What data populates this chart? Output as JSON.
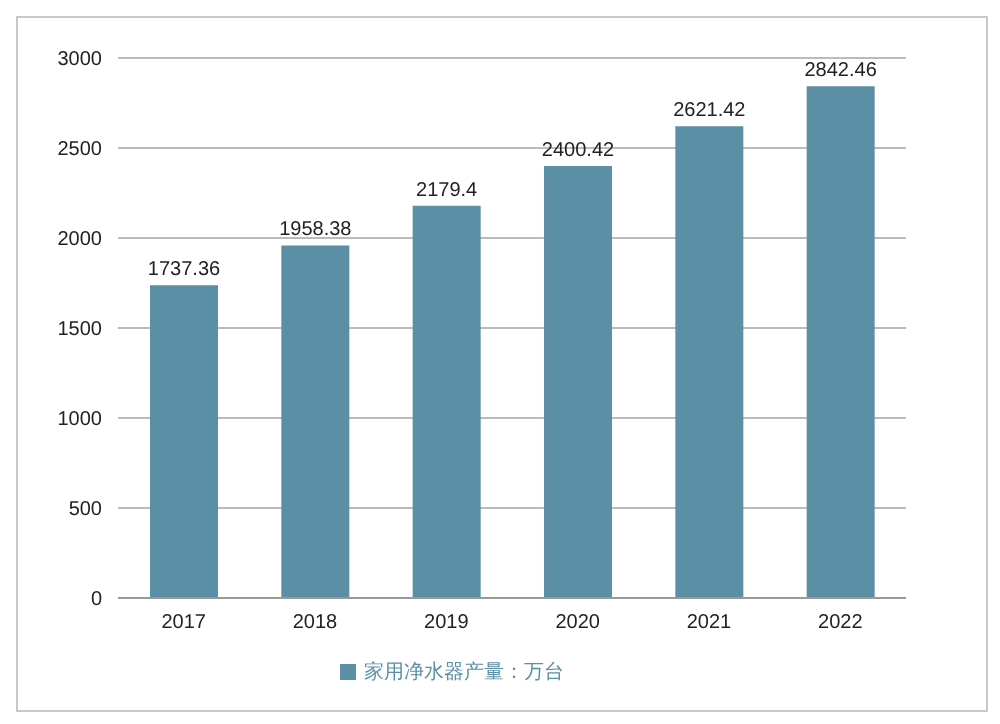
{
  "chart_data": {
    "type": "bar",
    "categories": [
      "2017",
      "2018",
      "2019",
      "2020",
      "2021",
      "2022"
    ],
    "series": [
      {
        "name": "家用净水器产量：万台",
        "color": "#5b8fa6",
        "values": [
          1737.36,
          1958.38,
          2179.4,
          2400.42,
          2621.42,
          2842.46
        ]
      }
    ],
    "ylim": [
      0,
      3000
    ],
    "yticks": [
      0,
      500,
      1000,
      1500,
      2000,
      2500,
      3000
    ],
    "grid": "y",
    "legend": "bottom",
    "data_labels": true
  }
}
